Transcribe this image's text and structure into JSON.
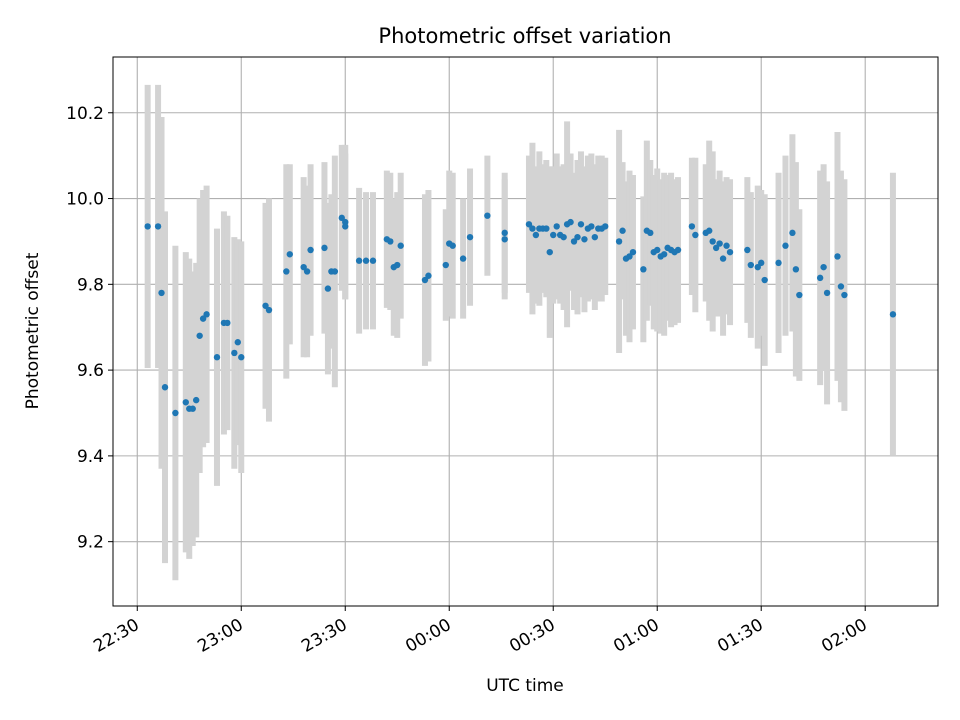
{
  "chart_data": {
    "type": "scatter",
    "title": "Photometric offset variation",
    "xlabel": "UTC time",
    "ylabel": "Photometric offset",
    "x_unit": "UTC time",
    "x_ticks": [
      "22:30",
      "23:00",
      "23:30",
      "00:00",
      "00:30",
      "01:00",
      "01:30",
      "02:00"
    ],
    "x_tick_label_rotation_deg": 30,
    "y_ticks": [
      9.2,
      9.4,
      9.6,
      9.8,
      10.0,
      10.2
    ],
    "xlim": [
      "22:23",
      "02:21"
    ],
    "ylim": [
      9.05,
      10.33
    ],
    "grid": true,
    "colors": {
      "points": "#1f77b4",
      "error_bars": "#d3d3d3",
      "grid": "#b0b0b0"
    },
    "series": [
      {
        "x": [
          "22:33",
          "22:36",
          "22:37",
          "22:38",
          "22:41",
          "22:44",
          "22:45",
          "22:46",
          "22:47",
          "22:48",
          "22:49",
          "22:50",
          "22:53",
          "22:55",
          "22:56",
          "22:58",
          "22:59",
          "23:00",
          "23:07",
          "23:08",
          "23:13",
          "23:14",
          "23:18",
          "23:19",
          "23:20",
          "23:24",
          "23:25",
          "23:26",
          "23:27",
          "23:29",
          "23:30",
          "23:30",
          "23:34",
          "23:36",
          "23:38",
          "23:42",
          "23:43",
          "23:44",
          "23:45",
          "23:46",
          "23:53",
          "23:54",
          "23:59",
          "24:00",
          "24:01",
          "24:04",
          "24:06",
          "24:11",
          "24:16",
          "24:16",
          "24:23",
          "24:24",
          "24:25",
          "24:26",
          "24:27",
          "24:28",
          "24:29",
          "24:30",
          "24:31",
          "24:32",
          "24:33",
          "24:34",
          "24:35",
          "24:36",
          "24:37",
          "24:38",
          "24:39",
          "24:40",
          "24:41",
          "24:42",
          "24:43",
          "24:44",
          "24:45",
          "24:49",
          "24:50",
          "24:51",
          "24:52",
          "24:53",
          "24:56",
          "24:57",
          "24:58",
          "24:59",
          "25:00",
          "25:01",
          "25:02",
          "25:03",
          "25:04",
          "25:05",
          "25:06",
          "25:10",
          "25:11",
          "25:14",
          "25:15",
          "25:16",
          "25:17",
          "25:18",
          "25:19",
          "25:20",
          "25:21",
          "25:26",
          "25:27",
          "25:29",
          "25:30",
          "25:31",
          "25:35",
          "25:37",
          "25:39",
          "25:40",
          "25:41",
          "25:47",
          "25:48",
          "25:49",
          "25:52",
          "25:53",
          "25:54",
          "26:08"
        ],
        "y": [
          9.935,
          9.935,
          9.78,
          9.56,
          9.5,
          9.525,
          9.51,
          9.51,
          9.53,
          9.68,
          9.72,
          9.73,
          9.63,
          9.71,
          9.71,
          9.64,
          9.665,
          9.63,
          9.75,
          9.74,
          9.83,
          9.87,
          9.84,
          9.83,
          9.88,
          9.885,
          9.79,
          9.83,
          9.83,
          9.955,
          9.945,
          9.935,
          9.855,
          9.855,
          9.855,
          9.905,
          9.9,
          9.84,
          9.845,
          9.89,
          9.81,
          9.82,
          9.845,
          9.895,
          9.89,
          9.86,
          9.91,
          9.96,
          9.92,
          9.905,
          9.94,
          9.93,
          9.915,
          9.93,
          9.93,
          9.93,
          9.875,
          9.915,
          9.935,
          9.915,
          9.91,
          9.94,
          9.945,
          9.9,
          9.91,
          9.94,
          9.905,
          9.93,
          9.935,
          9.91,
          9.93,
          9.93,
          9.935,
          9.9,
          9.925,
          9.86,
          9.865,
          9.875,
          9.835,
          9.925,
          9.92,
          9.875,
          9.88,
          9.865,
          9.87,
          9.885,
          9.88,
          9.875,
          9.88,
          9.935,
          9.915,
          9.92,
          9.925,
          9.9,
          9.885,
          9.895,
          9.86,
          9.89,
          9.875,
          9.88,
          9.845,
          9.84,
          9.85,
          9.81,
          9.85,
          9.89,
          9.92,
          9.835,
          9.775,
          9.815,
          9.84,
          9.78,
          9.865,
          9.795,
          9.775,
          9.73
        ],
        "y_err": [
          0.33,
          0.33,
          0.41,
          0.41,
          0.39,
          0.35,
          0.35,
          0.32,
          0.32,
          0.32,
          0.3,
          0.3,
          0.3,
          0.26,
          0.25,
          0.27,
          0.24,
          0.27,
          0.24,
          0.26,
          0.25,
          0.21,
          0.21,
          0.2,
          0.2,
          0.2,
          0.2,
          0.18,
          0.27,
          0.17,
          0.18,
          0.17,
          0.17,
          0.16,
          0.16,
          0.16,
          0.16,
          0.16,
          0.17,
          0.17,
          0.2,
          0.2,
          0.13,
          0.17,
          0.17,
          0.14,
          0.16,
          0.14,
          0.14,
          0.14,
          0.16,
          0.2,
          0.16,
          0.18,
          0.15,
          0.16,
          0.2,
          0.16,
          0.17,
          0.16,
          0.17,
          0.24,
          0.16,
          0.16,
          0.18,
          0.17,
          0.17,
          0.17,
          0.17,
          0.17,
          0.17,
          0.17,
          0.16,
          0.26,
          0.16,
          0.18,
          0.2,
          0.18,
          0.17,
          0.21,
          0.17,
          0.18,
          0.19,
          0.18,
          0.19,
          0.17,
          0.18,
          0.17,
          0.17,
          0.16,
          0.18,
          0.16,
          0.21,
          0.21,
          0.16,
          0.17,
          0.18,
          0.16,
          0.17,
          0.17,
          0.17,
          0.19,
          0.17,
          0.2,
          0.21,
          0.21,
          0.23,
          0.25,
          0.2,
          0.25,
          0.24,
          0.26,
          0.29,
          0.27,
          0.27,
          0.33
        ]
      }
    ]
  }
}
